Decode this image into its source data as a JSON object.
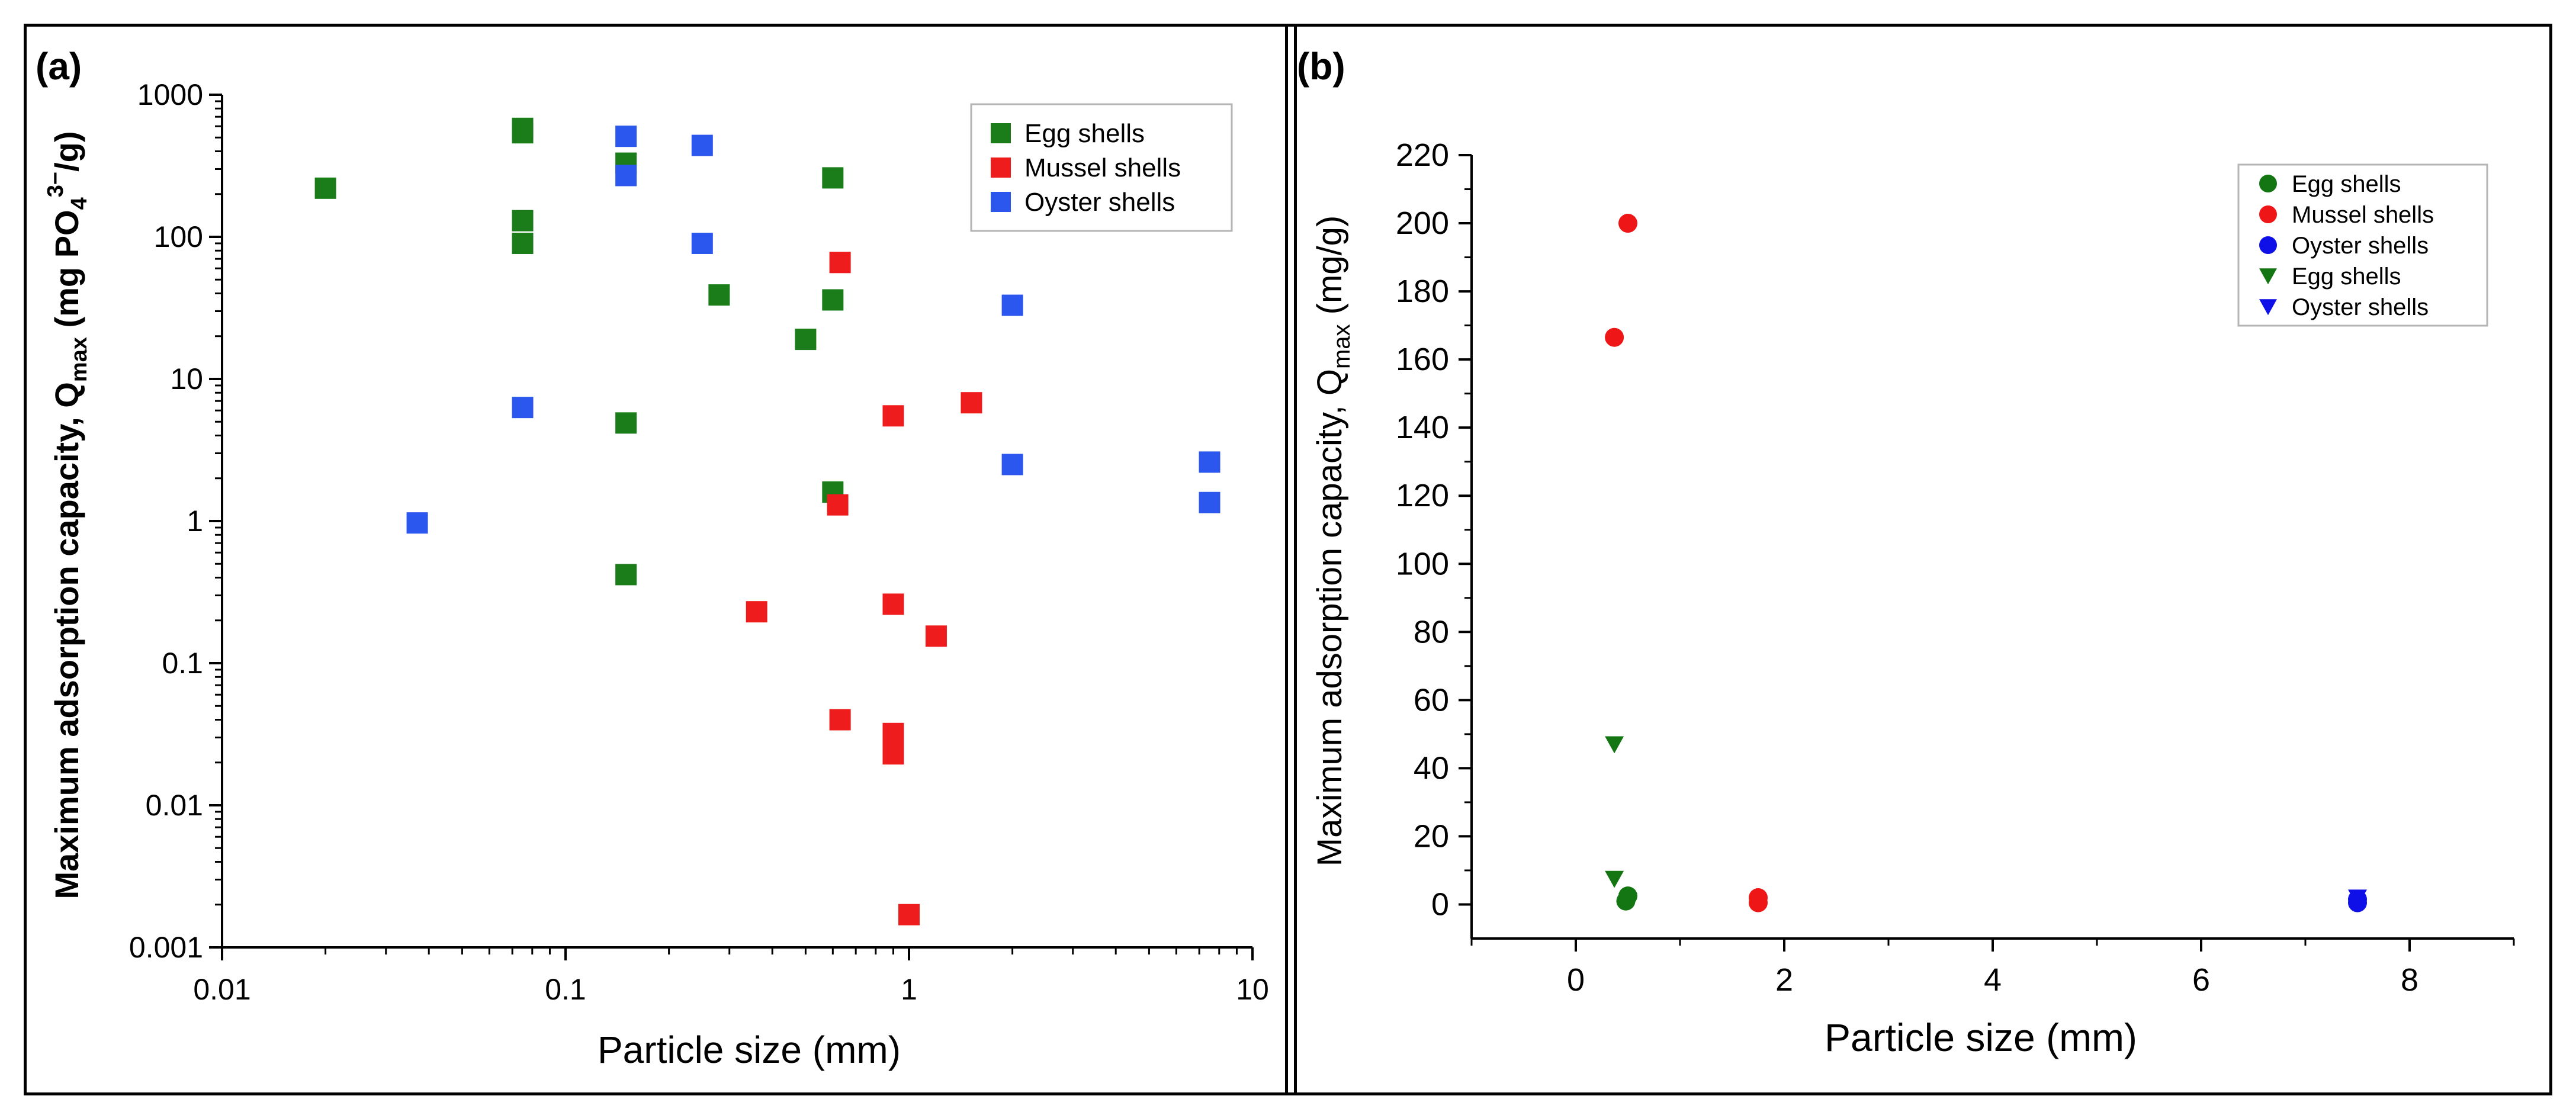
{
  "panels": {
    "a": {
      "label": "(a)"
    },
    "b": {
      "label": "(b)"
    }
  },
  "colors": {
    "egg": "#1a7d1a",
    "mussel": "#ee1c1c",
    "oyster": "#2b57ee",
    "egg_b": "#137613",
    "mussel_b": "#ee1616",
    "oyster_b": "#0f0fe8"
  },
  "chart_data": [
    {
      "type": "scatter",
      "id": "a",
      "xscale": "log",
      "yscale": "log",
      "xlabel": "Particle size (mm)",
      "ylabel_main": "Maximum adsorption capacity, Q",
      "ylabel_sub": "max",
      "ylabel_unit_pre": " (mg PO",
      "ylabel_unit_sub": "4",
      "ylabel_unit_sup": "3−",
      "ylabel_unit_post": "/g)",
      "xlim": [
        0.01,
        10
      ],
      "ylim": [
        0.001,
        1000
      ],
      "xticks": [
        0.01,
        0.1,
        1,
        10
      ],
      "xtick_labels": [
        "0.01",
        "0.1",
        "1",
        "10"
      ],
      "yticks": [
        0.001,
        0.01,
        0.1,
        1,
        10,
        100,
        1000
      ],
      "ytick_labels": [
        "0.001",
        "0.01",
        "0.1",
        "1",
        "10",
        "100",
        "1000"
      ],
      "legend_position": "top-right",
      "series": [
        {
          "name": "Egg shells",
          "color": "#1a7d1a",
          "marker": "square",
          "points": [
            [
              0.02,
              220
            ],
            [
              0.075,
              580
            ],
            [
              0.075,
              540
            ],
            [
              0.075,
              130
            ],
            [
              0.075,
              90
            ],
            [
              0.15,
              330
            ],
            [
              0.15,
              4.9
            ],
            [
              0.15,
              0.42
            ],
            [
              0.28,
              39
            ],
            [
              0.5,
              19
            ],
            [
              0.6,
              260
            ],
            [
              0.6,
              36
            ],
            [
              0.6,
              1.6
            ]
          ]
        },
        {
          "name": "Mussel shells",
          "color": "#ee1c1c",
          "marker": "square",
          "points": [
            [
              0.36,
              0.23
            ],
            [
              0.62,
              1.3
            ],
            [
              0.63,
              66
            ],
            [
              0.63,
              0.04
            ],
            [
              0.9,
              5.5
            ],
            [
              0.9,
              0.26
            ],
            [
              0.9,
              0.032
            ],
            [
              0.9,
              0.023
            ],
            [
              1.0,
              0.0017
            ],
            [
              1.2,
              0.155
            ],
            [
              1.52,
              6.8
            ]
          ]
        },
        {
          "name": "Oyster shells",
          "color": "#2b57ee",
          "marker": "square",
          "points": [
            [
              0.037,
              0.97
            ],
            [
              0.075,
              6.3
            ],
            [
              0.15,
              510
            ],
            [
              0.15,
              270
            ],
            [
              0.25,
              440
            ],
            [
              0.25,
              90
            ],
            [
              2.0,
              33
            ],
            [
              2.0,
              2.5
            ],
            [
              7.5,
              2.6
            ],
            [
              7.5,
              1.35
            ]
          ]
        }
      ]
    },
    {
      "type": "scatter",
      "id": "b",
      "xscale": "linear",
      "yscale": "linear",
      "xlabel": "Particle size (mm)",
      "ylabel_main": "Maximum adsorption capacity, Q",
      "ylabel_sub": "max",
      "ylabel_unit": " (mg/g)",
      "xlim": [
        -1,
        9
      ],
      "ylim": [
        -10,
        220
      ],
      "xticks": [
        0,
        2,
        4,
        6,
        8
      ],
      "xtick_labels": [
        "0",
        "2",
        "4",
        "6",
        "8"
      ],
      "yticks": [
        0,
        20,
        40,
        60,
        80,
        100,
        120,
        140,
        160,
        180,
        200,
        220
      ],
      "ytick_labels": [
        "0",
        "20",
        "40",
        "60",
        "80",
        "100",
        "120",
        "140",
        "160",
        "180",
        "200",
        "220"
      ],
      "legend_position": "top-right",
      "series": [
        {
          "name": "Egg shells",
          "color": "#137613",
          "marker": "circle",
          "points": [
            [
              0.5,
              2.5
            ],
            [
              0.48,
              1.0
            ]
          ]
        },
        {
          "name": "Mussel shells",
          "color": "#ee1616",
          "marker": "circle",
          "points": [
            [
              0.37,
              166.5
            ],
            [
              0.5,
              200
            ],
            [
              1.75,
              2.0
            ],
            [
              1.75,
              0.5
            ]
          ]
        },
        {
          "name": "Oyster shells",
          "color": "#0f0fe8",
          "marker": "circle",
          "points": [
            [
              7.5,
              1.5
            ],
            [
              7.5,
              0.5
            ]
          ]
        },
        {
          "name": "Egg shells",
          "color": "#137613",
          "marker": "triangle-down",
          "points": [
            [
              0.37,
              47
            ],
            [
              0.37,
              7.5
            ],
            [
              0.5,
              1.0
            ]
          ]
        },
        {
          "name": "Oyster shells",
          "color": "#0f0fe8",
          "marker": "triangle-down",
          "points": [
            [
              7.5,
              2.0
            ]
          ]
        }
      ]
    }
  ]
}
